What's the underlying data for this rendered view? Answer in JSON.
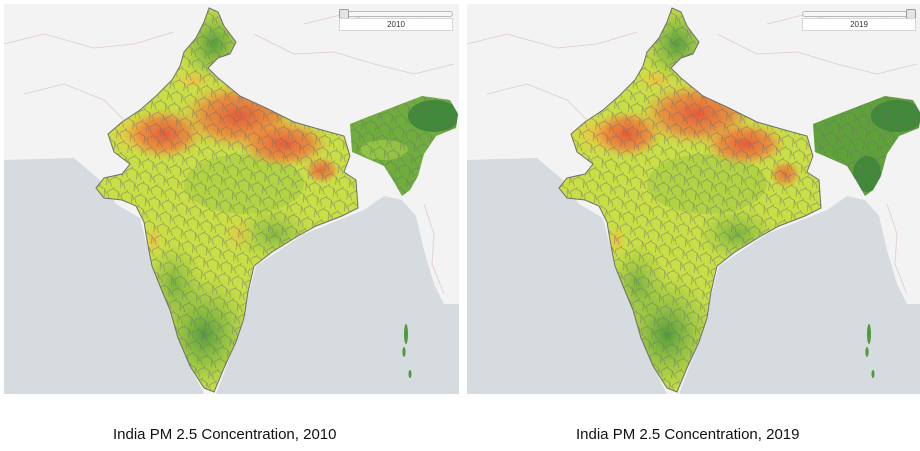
{
  "maps": [
    {
      "year_label": "2010",
      "caption": "India PM 2.5 Concentration, 2010",
      "slider_fraction": 0.0
    },
    {
      "year_label": "2019",
      "caption": "India PM 2.5 Concentration, 2019",
      "slider_fraction": 1.0
    }
  ],
  "colors": {
    "ocean": "#d6dbdf",
    "land_background": "#f3f3f3",
    "low_pm": "#4f9a3c",
    "mid_pm": "#c9df45",
    "high_pm": "#f07a3a",
    "very_high_pm": "#e8543a",
    "district_borders": "#6e6e6e"
  }
}
